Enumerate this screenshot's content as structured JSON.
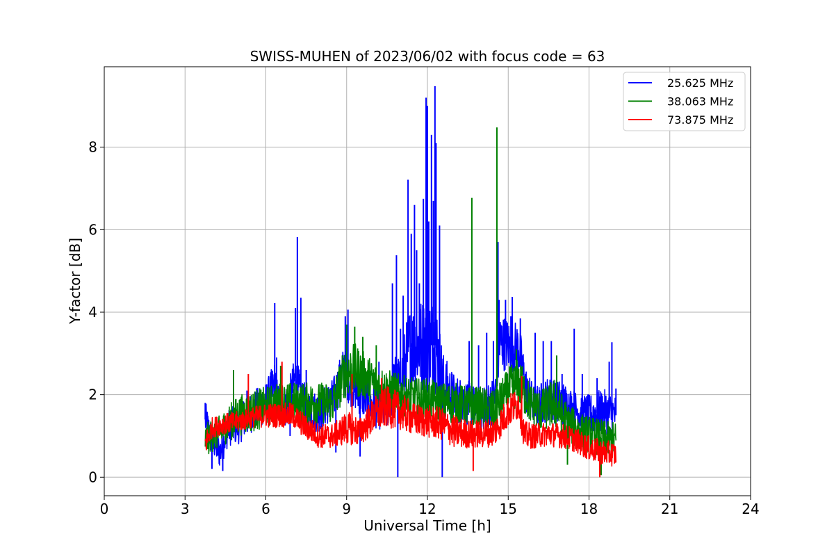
{
  "chart_data": {
    "type": "line",
    "title": "SWISS-MUHEN of 2023/06/02 with focus code = 63",
    "xlabel": "Universal Time [h]",
    "ylabel": "Y-factor [dB]",
    "xlim": [
      0,
      24
    ],
    "ylim": [
      -0.45,
      9.95
    ],
    "xticks": [
      0,
      3,
      6,
      9,
      12,
      15,
      18,
      21,
      24
    ],
    "yticks": [
      0,
      2,
      4,
      6,
      8
    ],
    "grid": true,
    "legend_position": "top-right",
    "series": [
      {
        "name": "25.625 MHz",
        "color": "#0000ff",
        "points": [
          [
            3.75,
            1.4
          ],
          [
            4.0,
            0.9
          ],
          [
            4.3,
            0.6
          ],
          [
            4.6,
            1.2
          ],
          [
            5.0,
            1.3
          ],
          [
            5.5,
            1.6
          ],
          [
            6.0,
            1.8
          ],
          [
            6.35,
            2.3
          ],
          [
            6.45,
            1.8
          ],
          [
            6.8,
            1.7
          ],
          [
            7.1,
            2.4
          ],
          [
            7.3,
            1.9
          ],
          [
            7.6,
            1.6
          ],
          [
            8.0,
            1.6
          ],
          [
            8.5,
            1.9
          ],
          [
            8.9,
            2.6
          ],
          [
            9.1,
            2.3
          ],
          [
            9.5,
            2.0
          ],
          [
            10.0,
            1.7
          ],
          [
            10.5,
            1.6
          ],
          [
            10.8,
            2.3
          ],
          [
            11.0,
            2.2
          ],
          [
            11.3,
            3.1
          ],
          [
            11.6,
            3.2
          ],
          [
            12.0,
            3.2
          ],
          [
            12.3,
            3.2
          ],
          [
            12.6,
            2.2
          ],
          [
            13.0,
            1.9
          ],
          [
            13.5,
            1.8
          ],
          [
            14.0,
            1.6
          ],
          [
            14.5,
            1.9
          ],
          [
            14.7,
            3.3
          ],
          [
            15.0,
            3.2
          ],
          [
            15.4,
            3.1
          ],
          [
            15.7,
            2.0
          ],
          [
            16.0,
            1.7
          ],
          [
            16.5,
            1.9
          ],
          [
            17.0,
            1.8
          ],
          [
            17.5,
            1.6
          ],
          [
            18.0,
            1.5
          ],
          [
            18.5,
            1.6
          ],
          [
            19.0,
            1.5
          ]
        ],
        "band": [
          0.9,
          0.75,
          0.8,
          0.9,
          1.0,
          1.0,
          1.0,
          1.1,
          1.0,
          1.0,
          1.2,
          1.1,
          1.0,
          1.0,
          1.0,
          1.2,
          1.1,
          1.0,
          1.0,
          1.0,
          1.4,
          1.5,
          2.0,
          2.2,
          2.4,
          2.4,
          1.6,
          1.2,
          1.1,
          1.0,
          1.2,
          1.4,
          1.3,
          1.3,
          1.1,
          1.0,
          1.1,
          1.1,
          1.0,
          1.0,
          1.1,
          1.0
        ],
        "peaks": [
          [
            3.75,
            1.8
          ],
          [
            4.0,
            0.2
          ],
          [
            4.4,
            0.15
          ],
          [
            4.8,
            2.55
          ],
          [
            5.3,
            2.1
          ],
          [
            6.33,
            4.22
          ],
          [
            6.4,
            2.9
          ],
          [
            6.9,
            1.0
          ],
          [
            7.1,
            4.1
          ],
          [
            7.17,
            5.82
          ],
          [
            7.3,
            4.35
          ],
          [
            7.5,
            2.6
          ],
          [
            8.6,
            0.6
          ],
          [
            8.95,
            3.9
          ],
          [
            9.05,
            4.06
          ],
          [
            9.5,
            0.5
          ],
          [
            10.2,
            2.8
          ],
          [
            10.7,
            4.7
          ],
          [
            10.85,
            5.38
          ],
          [
            10.9,
            0.0
          ],
          [
            11.0,
            3.6
          ],
          [
            11.1,
            4.4
          ],
          [
            11.28,
            7.21
          ],
          [
            11.4,
            5.9
          ],
          [
            11.52,
            6.6
          ],
          [
            11.6,
            5.5
          ],
          [
            11.7,
            4.7
          ],
          [
            11.85,
            6.75
          ],
          [
            11.95,
            9.2
          ],
          [
            12.0,
            9.0
          ],
          [
            12.05,
            6.2
          ],
          [
            12.15,
            8.3
          ],
          [
            12.22,
            6.7
          ],
          [
            12.28,
            9.48
          ],
          [
            12.32,
            8.1
          ],
          [
            12.45,
            6.1
          ],
          [
            12.55,
            0.0
          ],
          [
            12.9,
            2.5
          ],
          [
            13.3,
            1.6
          ],
          [
            13.55,
            3.3
          ],
          [
            13.9,
            3.2
          ],
          [
            14.2,
            3.5
          ],
          [
            14.45,
            3.3
          ],
          [
            14.62,
            5.7
          ],
          [
            14.66,
            4.3
          ],
          [
            14.9,
            4.3
          ],
          [
            15.1,
            3.9
          ],
          [
            15.15,
            4.37
          ],
          [
            15.45,
            3.85
          ],
          [
            15.7,
            1.7
          ],
          [
            16.0,
            3.5
          ],
          [
            16.3,
            3.3
          ],
          [
            16.6,
            3.3
          ],
          [
            17.0,
            2.5
          ],
          [
            17.45,
            3.6
          ],
          [
            17.75,
            2.5
          ],
          [
            18.3,
            2.4
          ],
          [
            18.75,
            2.8
          ],
          [
            18.85,
            3.27
          ],
          [
            19.0,
            2.15
          ]
        ]
      },
      {
        "name": "38.063 MHz",
        "color": "#008000",
        "points": [
          [
            3.75,
            0.9
          ],
          [
            4.0,
            1.0
          ],
          [
            4.3,
            1.1
          ],
          [
            4.6,
            1.3
          ],
          [
            5.0,
            1.5
          ],
          [
            5.5,
            1.6
          ],
          [
            6.0,
            1.7
          ],
          [
            6.5,
            1.8
          ],
          [
            7.0,
            1.8
          ],
          [
            7.5,
            1.8
          ],
          [
            8.0,
            1.8
          ],
          [
            8.5,
            1.8
          ],
          [
            8.9,
            2.5
          ],
          [
            9.3,
            2.6
          ],
          [
            9.8,
            2.4
          ],
          [
            10.2,
            2.2
          ],
          [
            10.6,
            2.1
          ],
          [
            11.0,
            2.0
          ],
          [
            11.5,
            1.9
          ],
          [
            12.0,
            1.9
          ],
          [
            12.5,
            1.8
          ],
          [
            13.0,
            1.8
          ],
          [
            13.5,
            1.7
          ],
          [
            14.0,
            1.7
          ],
          [
            14.5,
            1.6
          ],
          [
            15.0,
            2.1
          ],
          [
            15.4,
            2.3
          ],
          [
            15.8,
            1.8
          ],
          [
            16.2,
            1.6
          ],
          [
            16.7,
            1.8
          ],
          [
            17.2,
            1.3
          ],
          [
            17.7,
            1.1
          ],
          [
            18.2,
            1.0
          ],
          [
            18.7,
            0.9
          ],
          [
            19.0,
            0.9
          ]
        ],
        "band": [
          0.8,
          0.8,
          0.8,
          0.9,
          1.0,
          1.0,
          1.0,
          1.0,
          1.0,
          1.0,
          1.0,
          1.0,
          1.2,
          1.3,
          1.1,
          1.0,
          1.0,
          1.0,
          1.0,
          1.0,
          1.0,
          1.0,
          1.0,
          1.0,
          1.0,
          1.1,
          1.2,
          1.0,
          1.0,
          1.2,
          1.0,
          0.9,
          0.9,
          0.9,
          0.9
        ],
        "peaks": [
          [
            4.8,
            2.6
          ],
          [
            6.55,
            2.7
          ],
          [
            9.0,
            3.7
          ],
          [
            9.3,
            3.65
          ],
          [
            9.6,
            3.4
          ],
          [
            10.1,
            3.2
          ],
          [
            13.65,
            6.77
          ],
          [
            14.58,
            8.48
          ],
          [
            15.3,
            3.1
          ],
          [
            16.8,
            2.95
          ],
          [
            17.2,
            0.3
          ],
          [
            18.4,
            0.0
          ],
          [
            18.45,
            0.05
          ]
        ]
      },
      {
        "name": "73.875 MHz",
        "color": "#ff0000",
        "points": [
          [
            3.75,
            0.8
          ],
          [
            4.0,
            1.2
          ],
          [
            4.5,
            1.3
          ],
          [
            5.0,
            1.35
          ],
          [
            5.5,
            1.45
          ],
          [
            6.0,
            1.5
          ],
          [
            6.5,
            1.5
          ],
          [
            7.0,
            1.5
          ],
          [
            7.5,
            1.2
          ],
          [
            8.0,
            1.0
          ],
          [
            8.5,
            1.0
          ],
          [
            9.0,
            1.2
          ],
          [
            9.5,
            1.1
          ],
          [
            10.0,
            1.5
          ],
          [
            10.5,
            1.7
          ],
          [
            11.0,
            1.6
          ],
          [
            11.5,
            1.4
          ],
          [
            12.0,
            1.35
          ],
          [
            12.5,
            1.3
          ],
          [
            13.0,
            1.1
          ],
          [
            13.5,
            1.05
          ],
          [
            14.0,
            1.05
          ],
          [
            14.5,
            1.1
          ],
          [
            15.0,
            1.6
          ],
          [
            15.4,
            1.8
          ],
          [
            15.6,
            1.0
          ],
          [
            16.0,
            1.0
          ],
          [
            16.5,
            1.05
          ],
          [
            17.0,
            1.0
          ],
          [
            17.5,
            0.9
          ],
          [
            18.0,
            0.7
          ],
          [
            18.5,
            0.6
          ],
          [
            19.0,
            0.55
          ]
        ],
        "band": [
          0.6,
          0.5,
          0.5,
          0.5,
          0.5,
          0.6,
          0.6,
          0.6,
          0.6,
          0.6,
          0.6,
          0.8,
          0.7,
          0.9,
          1.0,
          0.9,
          0.8,
          0.8,
          0.8,
          0.8,
          0.7,
          0.7,
          0.7,
          0.8,
          0.8,
          0.7,
          0.6,
          0.6,
          0.6,
          0.6,
          0.6,
          0.6,
          0.6
        ],
        "peaks": [
          [
            5.35,
            2.5
          ],
          [
            6.6,
            2.8
          ],
          [
            9.2,
            2.5
          ],
          [
            10.3,
            2.4
          ],
          [
            15.5,
            2.45
          ],
          [
            13.7,
            0.15
          ],
          [
            18.4,
            0.0
          ]
        ]
      }
    ]
  }
}
